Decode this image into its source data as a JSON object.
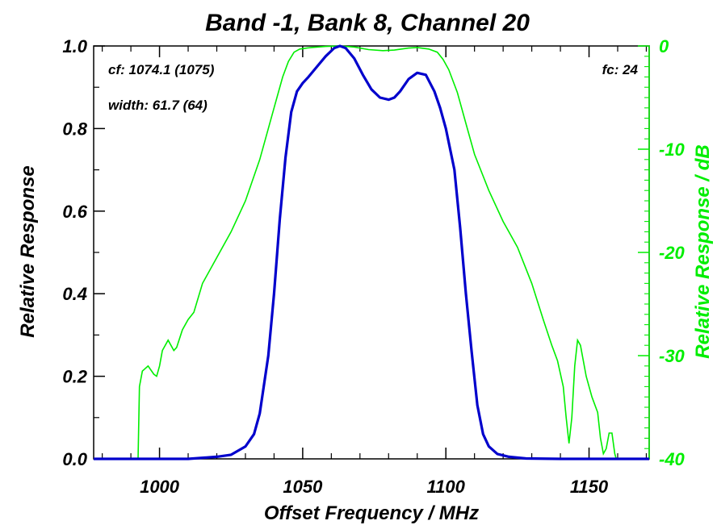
{
  "chart_data": {
    "type": "line",
    "title": "Band -1, Bank 8, Channel 20",
    "xlabel": "Offset Frequency / MHz",
    "ylabel": "Relative Response",
    "y2label": "Relative Response / dB",
    "xlim": [
      977,
      1171
    ],
    "ylim": [
      0,
      1.0
    ],
    "y2lim": [
      -40,
      0
    ],
    "xticks": [
      {
        "v": 1000,
        "label": "1000"
      },
      {
        "v": 1050,
        "label": "1050"
      },
      {
        "v": 1100,
        "label": "1100"
      },
      {
        "v": 1150,
        "label": "1150"
      }
    ],
    "yticks": [
      {
        "v": 0.0,
        "label": "0.0"
      },
      {
        "v": 0.2,
        "label": "0.2"
      },
      {
        "v": 0.4,
        "label": "0.4"
      },
      {
        "v": 0.6,
        "label": "0.6"
      },
      {
        "v": 0.8,
        "label": "0.8"
      },
      {
        "v": 1.0,
        "label": "1.0"
      }
    ],
    "y2ticks": [
      {
        "v": 0,
        "label": "0"
      },
      {
        "v": -10,
        "label": "-10"
      },
      {
        "v": -20,
        "label": "-20"
      },
      {
        "v": -30,
        "label": "-30"
      },
      {
        "v": -40,
        "label": "-40"
      }
    ],
    "annotations": {
      "cf": "cf: 1074.1 (1075)",
      "width": "width: 61.7 (64)",
      "fc": "fc: 24"
    },
    "colors": {
      "linear": "#0000cc",
      "db": "#00ee00",
      "axes": "#000000"
    },
    "series": [
      {
        "axis": "left",
        "points": [
          [
            977,
            0.0
          ],
          [
            1010,
            0.0
          ],
          [
            1020,
            0.005
          ],
          [
            1025,
            0.01
          ],
          [
            1030,
            0.03
          ],
          [
            1033,
            0.06
          ],
          [
            1035,
            0.11
          ],
          [
            1038,
            0.25
          ],
          [
            1040,
            0.4
          ],
          [
            1042,
            0.58
          ],
          [
            1044,
            0.73
          ],
          [
            1046,
            0.84
          ],
          [
            1048,
            0.89
          ],
          [
            1050,
            0.91
          ],
          [
            1052,
            0.925
          ],
          [
            1055,
            0.95
          ],
          [
            1058,
            0.975
          ],
          [
            1061,
            0.995
          ],
          [
            1063,
            1.0
          ],
          [
            1065,
            0.995
          ],
          [
            1068,
            0.97
          ],
          [
            1071,
            0.93
          ],
          [
            1074,
            0.895
          ],
          [
            1077,
            0.875
          ],
          [
            1080,
            0.87
          ],
          [
            1082,
            0.875
          ],
          [
            1084,
            0.89
          ],
          [
            1087,
            0.92
          ],
          [
            1090,
            0.935
          ],
          [
            1093,
            0.93
          ],
          [
            1096,
            0.89
          ],
          [
            1098,
            0.85
          ],
          [
            1100,
            0.8
          ],
          [
            1103,
            0.7
          ],
          [
            1105,
            0.56
          ],
          [
            1107,
            0.4
          ],
          [
            1109,
            0.26
          ],
          [
            1111,
            0.13
          ],
          [
            1113,
            0.06
          ],
          [
            1115,
            0.03
          ],
          [
            1118,
            0.012
          ],
          [
            1122,
            0.005
          ],
          [
            1128,
            0.001
          ],
          [
            1140,
            0.0
          ],
          [
            1171,
            0.0
          ]
        ]
      },
      {
        "axis": "right",
        "points": [
          [
            992.5,
            -40
          ],
          [
            993,
            -33
          ],
          [
            994,
            -31.5
          ],
          [
            996,
            -31
          ],
          [
            998,
            -31.8
          ],
          [
            999,
            -32
          ],
          [
            1000,
            -31
          ],
          [
            1001,
            -29.5
          ],
          [
            1003,
            -28.5
          ],
          [
            1005,
            -29.5
          ],
          [
            1006,
            -29.2
          ],
          [
            1008,
            -27.5
          ],
          [
            1010,
            -26.5
          ],
          [
            1012,
            -25.8
          ],
          [
            1015,
            -23
          ],
          [
            1020,
            -20.5
          ],
          [
            1025,
            -18
          ],
          [
            1030,
            -15
          ],
          [
            1035,
            -11
          ],
          [
            1040,
            -6
          ],
          [
            1043,
            -3
          ],
          [
            1045,
            -1.5
          ],
          [
            1047,
            -0.6
          ],
          [
            1049,
            -0.3
          ],
          [
            1053,
            -0.15
          ],
          [
            1058,
            -0.05
          ],
          [
            1063,
            0
          ],
          [
            1068,
            -0.1
          ],
          [
            1073,
            -0.35
          ],
          [
            1078,
            -0.45
          ],
          [
            1082,
            -0.4
          ],
          [
            1087,
            -0.2
          ],
          [
            1090,
            -0.15
          ],
          [
            1094,
            -0.3
          ],
          [
            1097,
            -0.6
          ],
          [
            1099,
            -1.3
          ],
          [
            1101,
            -2.3
          ],
          [
            1104,
            -4.5
          ],
          [
            1107,
            -7.5
          ],
          [
            1110,
            -10.5
          ],
          [
            1115,
            -14
          ],
          [
            1120,
            -17
          ],
          [
            1125,
            -19.5
          ],
          [
            1130,
            -23
          ],
          [
            1134,
            -26.5
          ],
          [
            1137,
            -29
          ],
          [
            1139,
            -30.5
          ],
          [
            1141,
            -33
          ],
          [
            1142,
            -36
          ],
          [
            1143,
            -38.5
          ],
          [
            1144,
            -36
          ],
          [
            1145,
            -31
          ],
          [
            1146,
            -28.5
          ],
          [
            1147,
            -29
          ],
          [
            1149,
            -32
          ],
          [
            1151,
            -34
          ],
          [
            1153,
            -35.5
          ],
          [
            1154,
            -38
          ],
          [
            1155,
            -39.5
          ],
          [
            1156,
            -39
          ],
          [
            1157,
            -37.5
          ],
          [
            1158,
            -37.5
          ],
          [
            1159,
            -39.5
          ],
          [
            1159.5,
            -40
          ]
        ]
      }
    ]
  }
}
